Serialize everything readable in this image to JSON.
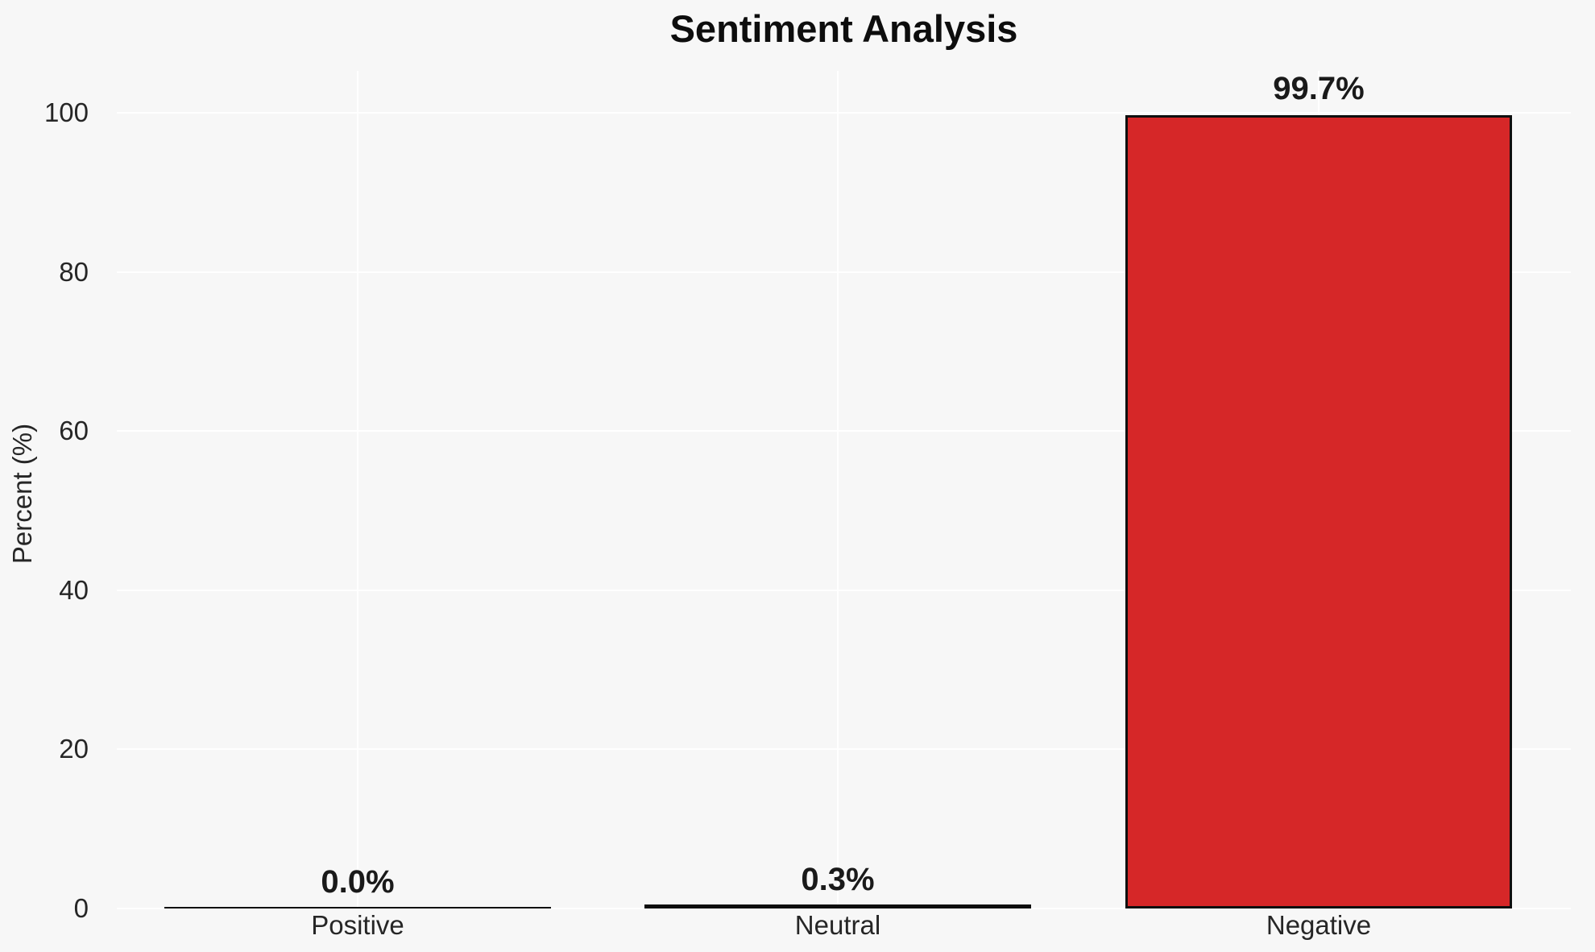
{
  "figure": {
    "background_color": "#f7f7f7",
    "grid_color": "#ffffff",
    "bar_fill_color": "#d62728",
    "bar_edge_color": "#0f0f0f",
    "text_color": "#262626"
  },
  "chart_data": {
    "type": "bar",
    "title": "Sentiment Analysis",
    "xlabel": "",
    "ylabel": "Percent (%)",
    "categories": [
      "Positive",
      "Neutral",
      "Negative"
    ],
    "values": [
      0.0,
      0.3,
      99.7
    ],
    "value_labels": [
      "0.0%",
      "0.3%",
      "99.7%"
    ],
    "yticks": [
      0,
      20,
      40,
      60,
      80,
      100
    ],
    "ylim": [
      0,
      105
    ],
    "grid": "on",
    "legend": "none",
    "bar_color": "#d62728"
  }
}
